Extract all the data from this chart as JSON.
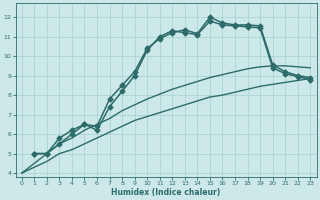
{
  "xlabel": "Humidex (Indice chaleur)",
  "xlim": [
    -0.5,
    23.5
  ],
  "ylim": [
    3.8,
    12.7
  ],
  "yticks": [
    4,
    5,
    6,
    7,
    8,
    9,
    10,
    11,
    12
  ],
  "xticks": [
    0,
    1,
    2,
    3,
    4,
    5,
    6,
    7,
    8,
    9,
    10,
    11,
    12,
    13,
    14,
    15,
    16,
    17,
    18,
    19,
    20,
    21,
    22,
    23
  ],
  "bg_color": "#cce8e8",
  "line_color": "#2d6b6b",
  "grid_color": "#aad4d4",
  "series": [
    {
      "x": [
        1,
        2,
        3,
        4,
        5,
        6,
        7,
        8,
        9,
        10,
        11,
        12,
        13,
        14,
        15,
        16,
        17,
        18,
        19,
        20,
        21,
        22,
        23
      ],
      "y": [
        5.0,
        5.0,
        5.8,
        6.2,
        6.5,
        6.4,
        7.8,
        8.5,
        9.2,
        10.4,
        10.9,
        11.2,
        11.35,
        11.15,
        12.0,
        11.7,
        11.6,
        11.6,
        11.55,
        9.55,
        9.2,
        9.0,
        8.9
      ],
      "marker": "D",
      "markersize": 2.5,
      "linewidth": 1.1
    },
    {
      "x": [
        1,
        2,
        3,
        4,
        5,
        6,
        7,
        8,
        9,
        10,
        11,
        12,
        13,
        14,
        15,
        16,
        17,
        18,
        19,
        20,
        21,
        22,
        23
      ],
      "y": [
        5.0,
        5.0,
        5.5,
        6.0,
        6.5,
        6.2,
        7.4,
        8.2,
        9.0,
        10.3,
        11.0,
        11.3,
        11.2,
        11.1,
        11.8,
        11.6,
        11.55,
        11.5,
        11.45,
        9.4,
        9.1,
        8.95,
        8.8
      ],
      "marker": "D",
      "markersize": 2.5,
      "linewidth": 1.1
    },
    {
      "x": [
        0,
        1,
        2,
        3,
        4,
        5,
        6,
        7,
        8,
        9,
        10,
        11,
        12,
        13,
        14,
        15,
        16,
        17,
        18,
        19,
        20,
        21,
        22,
        23
      ],
      "y": [
        4.0,
        4.3,
        4.6,
        5.0,
        5.2,
        5.5,
        5.8,
        6.1,
        6.4,
        6.7,
        6.9,
        7.1,
        7.3,
        7.5,
        7.7,
        7.9,
        8.0,
        8.15,
        8.3,
        8.45,
        8.55,
        8.65,
        8.75,
        8.85
      ],
      "marker": null,
      "markersize": 0,
      "linewidth": 1.0
    },
    {
      "x": [
        0,
        1,
        2,
        3,
        4,
        5,
        6,
        7,
        8,
        9,
        10,
        11,
        12,
        13,
        14,
        15,
        16,
        17,
        18,
        19,
        20,
        21,
        22,
        23
      ],
      "y": [
        4.0,
        4.5,
        5.0,
        5.5,
        5.8,
        6.2,
        6.5,
        6.8,
        7.2,
        7.5,
        7.8,
        8.05,
        8.3,
        8.5,
        8.7,
        8.9,
        9.05,
        9.2,
        9.35,
        9.45,
        9.5,
        9.5,
        9.45,
        9.4
      ],
      "marker": null,
      "markersize": 0,
      "linewidth": 1.0
    }
  ]
}
